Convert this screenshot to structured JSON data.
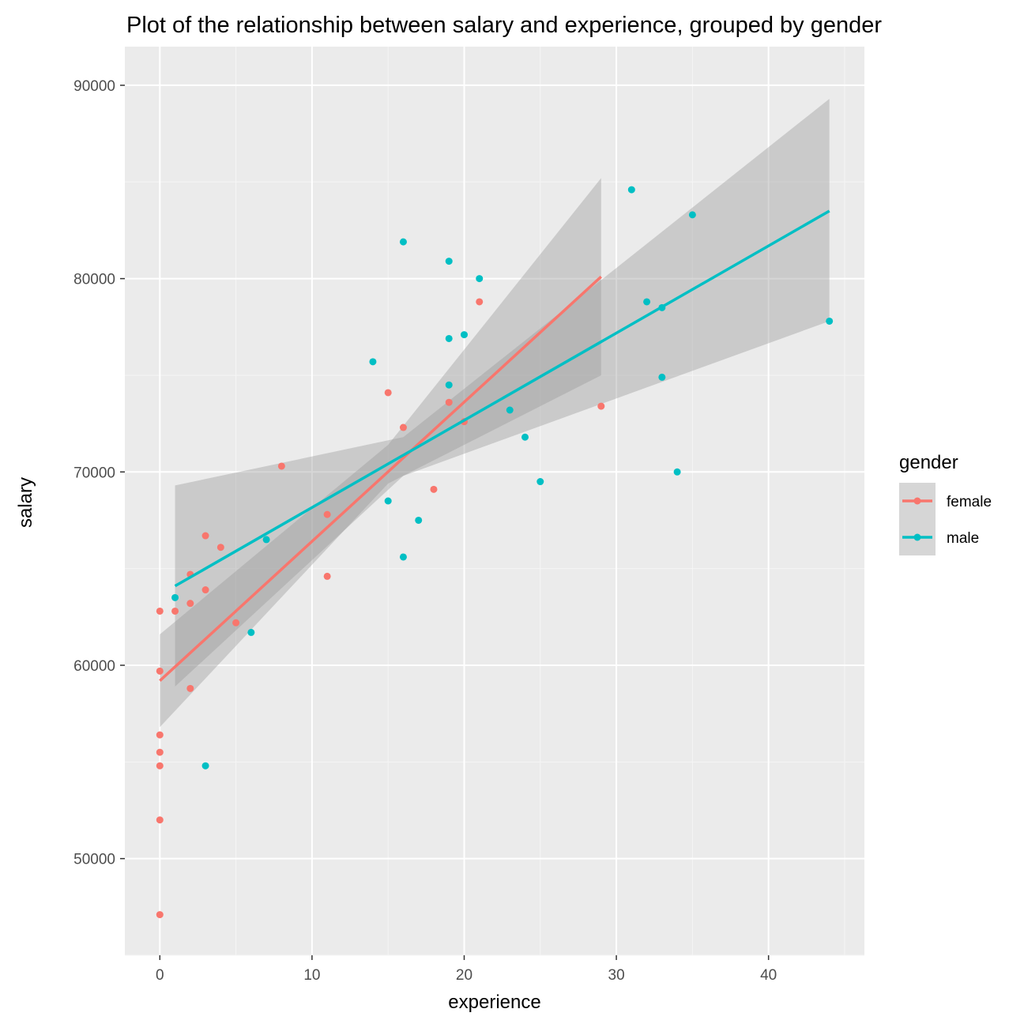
{
  "chart_data": {
    "type": "scatter",
    "title": "Plot of the relationship between salary and experience, grouped by gender",
    "xlabel": "experience",
    "ylabel": "salary",
    "xlim": [
      -2.3,
      46.3
    ],
    "ylim": [
      45000,
      92000
    ],
    "xticks": [
      0,
      10,
      20,
      30,
      40
    ],
    "yticks": [
      50000,
      60000,
      70000,
      80000,
      90000
    ],
    "grid": true,
    "legend": {
      "title": "gender",
      "position": "right"
    },
    "series": [
      {
        "name": "female",
        "color": "#F8766D",
        "points": [
          [
            0,
            62800
          ],
          [
            0,
            59700
          ],
          [
            0,
            56400
          ],
          [
            0,
            55500
          ],
          [
            0,
            54800
          ],
          [
            0,
            52000
          ],
          [
            0,
            47100
          ],
          [
            1,
            62800
          ],
          [
            2,
            64700
          ],
          [
            2,
            63200
          ],
          [
            2,
            58800
          ],
          [
            3,
            66700
          ],
          [
            3,
            63900
          ],
          [
            4,
            66100
          ],
          [
            5,
            62200
          ],
          [
            8,
            70300
          ],
          [
            11,
            67800
          ],
          [
            11,
            64600
          ],
          [
            15,
            74100
          ],
          [
            16,
            72300
          ],
          [
            18,
            69100
          ],
          [
            19,
            73600
          ],
          [
            20,
            72600
          ],
          [
            21,
            78800
          ],
          [
            29,
            73400
          ]
        ],
        "fit": {
          "x": [
            0,
            29
          ],
          "y": [
            59200,
            80100
          ]
        },
        "band": {
          "x": [
            0,
            15,
            29
          ],
          "upper": [
            61600,
            71400,
            85200
          ],
          "lower": [
            56800,
            69400,
            75000
          ]
        }
      },
      {
        "name": "male",
        "color": "#00BFC4",
        "points": [
          [
            1,
            63500
          ],
          [
            3,
            54800
          ],
          [
            6,
            61700
          ],
          [
            7,
            66500
          ],
          [
            14,
            75700
          ],
          [
            15,
            68500
          ],
          [
            16,
            81900
          ],
          [
            16,
            65600
          ],
          [
            17,
            67500
          ],
          [
            19,
            80900
          ],
          [
            19,
            76900
          ],
          [
            19,
            74500
          ],
          [
            20,
            77100
          ],
          [
            21,
            80000
          ],
          [
            23,
            73200
          ],
          [
            24,
            71800
          ],
          [
            25,
            69500
          ],
          [
            31,
            84600
          ],
          [
            32,
            78800
          ],
          [
            33,
            78500
          ],
          [
            33,
            74900
          ],
          [
            34,
            70000
          ],
          [
            35,
            83300
          ],
          [
            44,
            77800
          ]
        ],
        "fit": {
          "x": [
            1,
            44
          ],
          "y": [
            64100,
            83500
          ]
        },
        "band": {
          "x": [
            1,
            16,
            44
          ],
          "upper": [
            69300,
            71800,
            89300
          ],
          "lower": [
            58900,
            69800,
            77800
          ]
        }
      }
    ]
  }
}
